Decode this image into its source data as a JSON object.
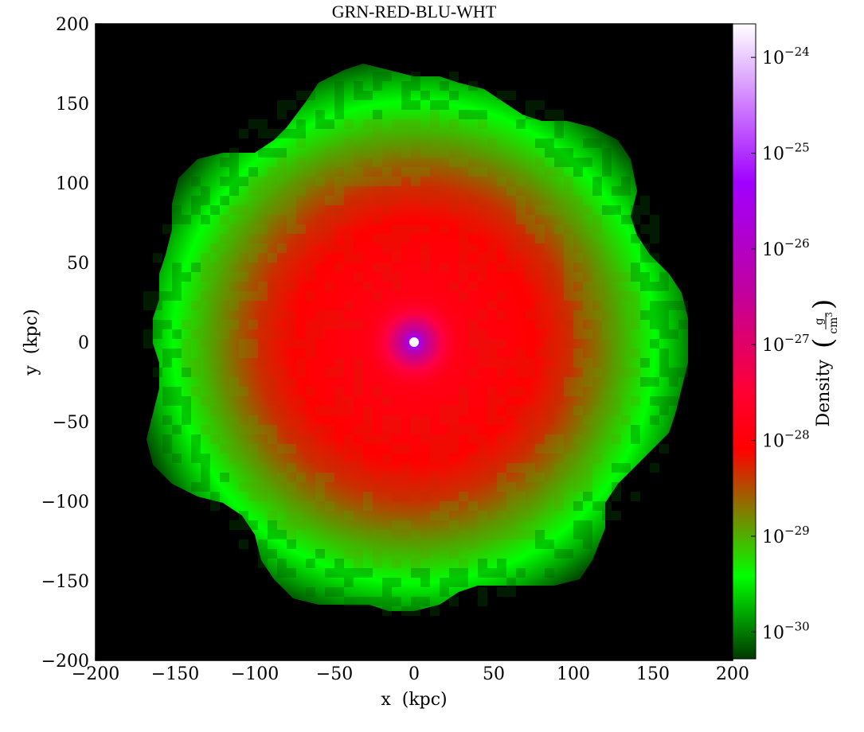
{
  "chart_data": {
    "type": "heatmap",
    "title": "GRN-RED-BLU-WHT",
    "xlabel": "x  (kpc)",
    "ylabel": "y  (kpc)",
    "xlim": [
      -200,
      200
    ],
    "ylim": [
      -200,
      200
    ],
    "xticks": [
      "−200",
      "−150",
      "−100",
      "−50",
      "0",
      "50",
      "100",
      "150",
      "200"
    ],
    "yticks": [
      "−200",
      "−150",
      "−100",
      "−50",
      "0",
      "50",
      "100",
      "150",
      "200"
    ],
    "xtick_values": [
      -200,
      -150,
      -100,
      -50,
      0,
      50,
      100,
      150,
      200
    ],
    "ytick_values": [
      -200,
      -150,
      -100,
      -50,
      0,
      50,
      100,
      150,
      200
    ],
    "background_color": "#000000",
    "colormap": "GRN-RED-BLU-WHT",
    "colormap_stops": [
      "#003a00",
      "#00ff00",
      "#ff0000",
      "#ff0033",
      "#c000a0",
      "#a000ff",
      "#ffffff"
    ],
    "colorbar": {
      "label": "Density",
      "unit_numerator": "g",
      "unit_denominator": "cm",
      "unit_denominator_exp": "3",
      "scale": "log",
      "range_log10": [
        -30.28,
        -23.65
      ],
      "tick_base": "10",
      "tick_exponents": [
        "−30",
        "−29",
        "−28",
        "−27",
        "−26",
        "−25",
        "−24"
      ],
      "tick_log_values": [
        -30,
        -29,
        -28,
        -27,
        -26,
        -25,
        -24
      ]
    },
    "structure": {
      "edge_radius_kpc": 180,
      "green_ring_radius_kpc": 160,
      "red_core_radius_kpc": 90,
      "center_x_kpc": 0,
      "center_y_kpc": 0
    }
  }
}
